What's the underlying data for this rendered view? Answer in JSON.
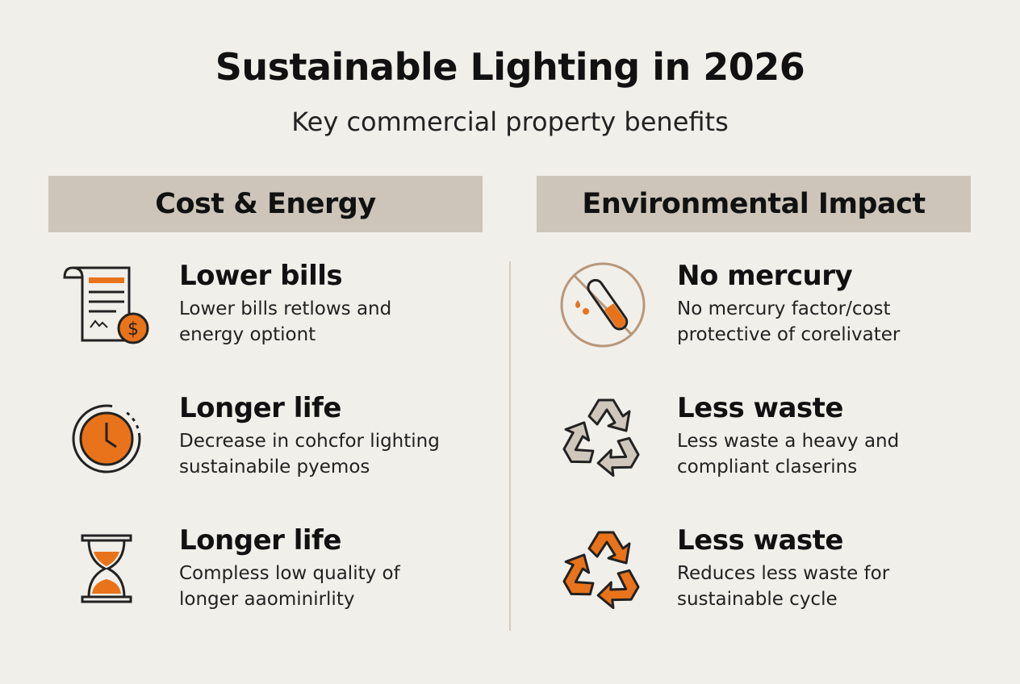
{
  "header": {
    "title": "Sustainable Lighting in 2026",
    "subtitle": "Key commercial property benefits"
  },
  "columns": [
    {
      "heading": "Cost & Energy",
      "items": [
        {
          "title": "Lower bills",
          "lines": [
            "Lower bills retlows and",
            "energy optiont"
          ]
        },
        {
          "title": "Longer life",
          "lines": [
            "Decrease in cohcfor lighting",
            "sustainabile pyemos"
          ]
        },
        {
          "title": "Longer life",
          "lines": [
            "Compless low quality of",
            "longer aaominirlity"
          ]
        }
      ]
    },
    {
      "heading": "Environmental Impact",
      "items": [
        {
          "title": "No mercury",
          "lines": [
            "No mercury factor/cost",
            "protective of corelivater"
          ]
        },
        {
          "title": "Less waste",
          "lines": [
            "Less waste a heavy and",
            "compliant claserins"
          ]
        },
        {
          "title": "Less waste",
          "lines": [
            "Reduces less waste for",
            "sustainable cycle"
          ]
        }
      ]
    }
  ]
}
